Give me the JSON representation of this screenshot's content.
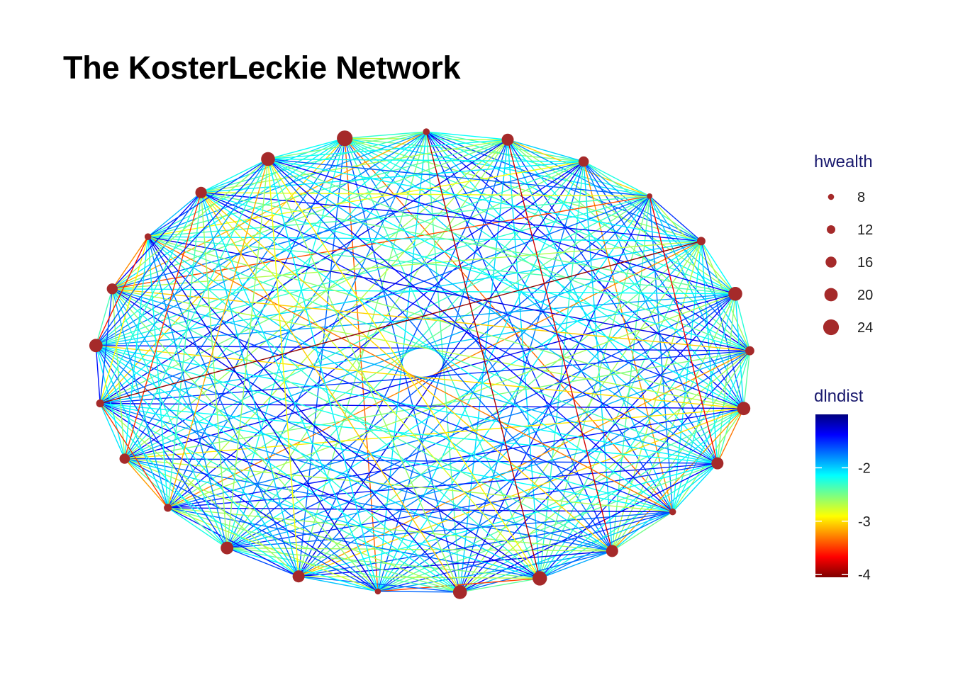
{
  "chart_data": {
    "type": "network",
    "title": "The KosterLeckie Network",
    "layout": "circle",
    "node_count": 25,
    "node_color": "#A52A2A",
    "node_size_variable": "hwealth",
    "edge_color_variable": "dlndist",
    "nodes": [
      {
        "id": 1,
        "hwealth": 24
      },
      {
        "id": 2,
        "hwealth": 9
      },
      {
        "id": 3,
        "hwealth": 18
      },
      {
        "id": 4,
        "hwealth": 15
      },
      {
        "id": 5,
        "hwealth": 7
      },
      {
        "id": 6,
        "hwealth": 12
      },
      {
        "id": 7,
        "hwealth": 21
      },
      {
        "id": 8,
        "hwealth": 13
      },
      {
        "id": 9,
        "hwealth": 20
      },
      {
        "id": 10,
        "hwealth": 18
      },
      {
        "id": 11,
        "hwealth": 9
      },
      {
        "id": 12,
        "hwealth": 18
      },
      {
        "id": 13,
        "hwealth": 22
      },
      {
        "id": 14,
        "hwealth": 21
      },
      {
        "id": 15,
        "hwealth": 8
      },
      {
        "id": 16,
        "hwealth": 18
      },
      {
        "id": 17,
        "hwealth": 19
      },
      {
        "id": 18,
        "hwealth": 11
      },
      {
        "id": 19,
        "hwealth": 15
      },
      {
        "id": 20,
        "hwealth": 11
      },
      {
        "id": 21,
        "hwealth": 20
      },
      {
        "id": 22,
        "hwealth": 16
      },
      {
        "id": 23,
        "hwealth": 9
      },
      {
        "id": 24,
        "hwealth": 17
      },
      {
        "id": 25,
        "hwealth": 21
      }
    ],
    "edge_highlights": [
      {
        "from": 6,
        "to": 20,
        "dlndist": -4
      },
      {
        "from": 2,
        "to": 13,
        "dlndist": -3.9
      },
      {
        "from": 3,
        "to": 12,
        "dlndist": -3.8
      },
      {
        "from": 21,
        "to": 23,
        "dlndist": -3.6
      },
      {
        "from": 5,
        "to": 10,
        "dlndist": -3.7
      },
      {
        "from": 18,
        "to": 20,
        "dlndist": -3.5
      },
      {
        "from": 18,
        "to": 19,
        "dlndist": -3.2
      }
    ],
    "legend_size": {
      "title": "hwealth",
      "breaks": [
        8,
        12,
        16,
        20,
        24
      ],
      "labels": [
        "8",
        "12",
        "16",
        "20",
        "24"
      ]
    },
    "legend_color": {
      "title": "dlndist",
      "range": [
        -4.05,
        -1.0
      ],
      "breaks": [
        -2,
        -3,
        -4
      ],
      "labels": [
        "-2",
        "-3",
        "-4"
      ],
      "colors": [
        "#7F0000",
        "#FF0000",
        "#FF7F00",
        "#FFFF00",
        "#7FFF7F",
        "#00FFFF",
        "#007FFF",
        "#0000FF",
        "#00007F"
      ]
    }
  }
}
